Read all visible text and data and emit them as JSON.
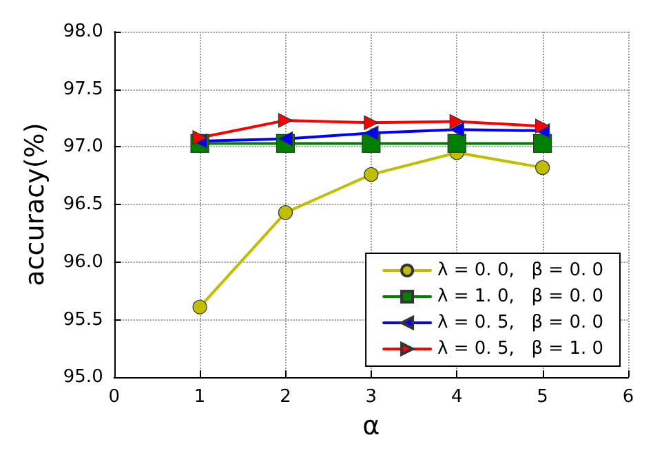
{
  "chart_data": {
    "type": "line",
    "xlabel": "α",
    "ylabel": "accuracy(%)",
    "x": [
      1,
      2,
      3,
      4,
      5
    ],
    "xlim": [
      0,
      6
    ],
    "xticks": [
      0,
      1,
      2,
      3,
      4,
      5,
      6
    ],
    "ylim": [
      95.0,
      98.0
    ],
    "yticks": [
      {
        "value": 95,
        "label": "95.0"
      },
      {
        "value": 95.5,
        "label": "95.5"
      },
      {
        "value": 96,
        "label": "96.0"
      },
      {
        "value": 96.5,
        "label": "96.5"
      },
      {
        "value": 97,
        "label": "97.0"
      },
      {
        "value": 97.5,
        "label": "97.5"
      },
      {
        "value": 98,
        "label": "98.0"
      }
    ],
    "grid": true,
    "legend": "bottom right",
    "line_style": "solid",
    "series": [
      {
        "name": "λ = 0. 0,   β = 0. 0",
        "color": "#bfbf00",
        "marker": "circle",
        "values": [
          95.61,
          96.43,
          96.76,
          96.95,
          96.82
        ]
      },
      {
        "name": "λ = 1. 0,   β = 0. 0",
        "color": "#008000",
        "marker": "square",
        "values": [
          97.03,
          97.03,
          97.03,
          97.03,
          97.03
        ]
      },
      {
        "name": "λ = 0. 5,   β = 0. 0",
        "color": "#0000ff",
        "marker": "triangle-left",
        "values": [
          97.05,
          97.07,
          97.12,
          97.15,
          97.14
        ]
      },
      {
        "name": "λ = 0. 5,   β = 1. 0",
        "color": "#ff0000",
        "marker": "triangle-right",
        "values": [
          97.08,
          97.23,
          97.21,
          97.22,
          97.18
        ]
      }
    ]
  }
}
